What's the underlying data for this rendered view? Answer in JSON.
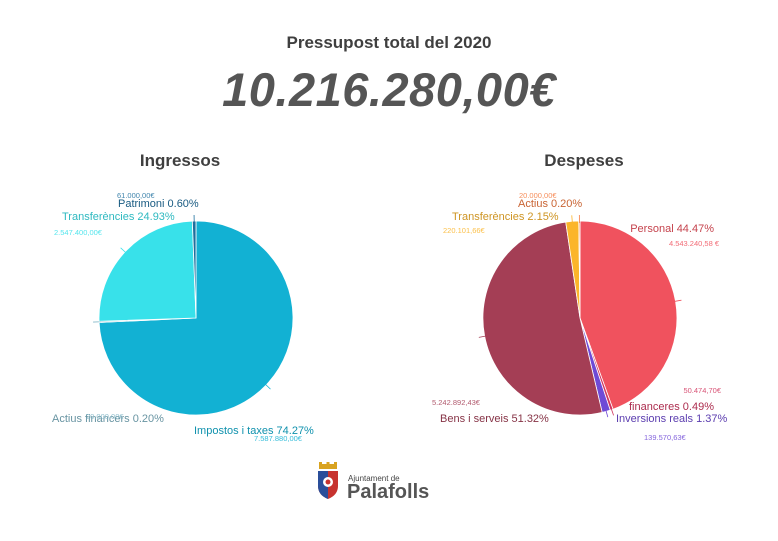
{
  "header": {
    "title": "Pressupost total del 2020",
    "total": "10.216.280,00€"
  },
  "chart_data": [
    {
      "type": "pie",
      "title": "Ingressos",
      "slices": [
        {
          "label": "Impostos i taxes 74.27%",
          "amount": "7.587.880,00€",
          "value": 74.27,
          "color": "#12B1D3"
        },
        {
          "label": "Transferències 24.93%",
          "amount": "2.547.400,00€",
          "value": 24.93,
          "color": "#38E1EA"
        },
        {
          "label": "Patrimoni 0.60%",
          "amount": "61.000,00€",
          "value": 0.6,
          "color": "#1E6F9E"
        },
        {
          "label": "Actius financers 0.20%",
          "amount": "20.000,00€",
          "value": 0.2,
          "color": "#7FB5C6"
        }
      ]
    },
    {
      "type": "pie",
      "title": "Despeses",
      "slices": [
        {
          "label": "Personal 44.47%",
          "amount": "4.543.240,58 €",
          "value": 44.47,
          "color": "#F0525E"
        },
        {
          "label": "financeres 0.49%",
          "amount": "50.474,70€",
          "value": 0.49,
          "color": "#D2365F"
        },
        {
          "label": "Inversions reals 1.37%",
          "amount": "139.570,63€",
          "value": 1.37,
          "color": "#6F4AD6"
        },
        {
          "label": "Bens i serveis 51.32%",
          "amount": "5.242.892,43€",
          "value": 51.32,
          "color": "#A43E55"
        },
        {
          "label": "Transferències 2.15%",
          "amount": "220.101,66€",
          "value": 2.15,
          "color": "#FBB52A"
        },
        {
          "label": "Actius 0.20%",
          "amount": "20.000,00€",
          "value": 0.2,
          "color": "#F57A3E"
        }
      ]
    }
  ],
  "logo": {
    "small": "Ajuntament de",
    "big": "Palafolls"
  }
}
